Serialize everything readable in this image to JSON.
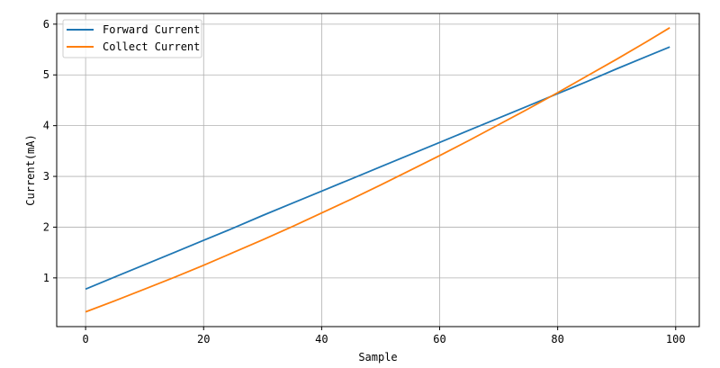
{
  "chart_data": {
    "type": "line",
    "xlabel": "Sample",
    "ylabel": "Current(mA)",
    "xlim": [
      -4.9,
      104
    ],
    "ylim": [
      0.04,
      6.21
    ],
    "xticks": [
      0,
      20,
      40,
      60,
      80,
      100
    ],
    "yticks": [
      1,
      2,
      3,
      4,
      5,
      6
    ],
    "grid": true,
    "legend_position": "top-left",
    "x": [
      0,
      5,
      10,
      15,
      20,
      25,
      30,
      35,
      40,
      45,
      50,
      55,
      60,
      65,
      70,
      75,
      80,
      85,
      90,
      95,
      99
    ],
    "series": [
      {
        "name": "Forward Current",
        "color": "#1f77b4",
        "values": [
          0.78,
          1.02,
          1.26,
          1.5,
          1.74,
          1.98,
          2.23,
          2.47,
          2.71,
          2.95,
          3.19,
          3.43,
          3.67,
          3.91,
          4.15,
          4.39,
          4.63,
          4.87,
          5.12,
          5.36,
          5.55
        ]
      },
      {
        "name": "Collect Current",
        "color": "#ff7f0e",
        "values": [
          0.33,
          0.55,
          0.78,
          1.01,
          1.25,
          1.5,
          1.75,
          2.01,
          2.28,
          2.55,
          2.83,
          3.12,
          3.41,
          3.71,
          4.02,
          4.33,
          4.65,
          4.98,
          5.31,
          5.65,
          5.93
        ]
      }
    ]
  }
}
